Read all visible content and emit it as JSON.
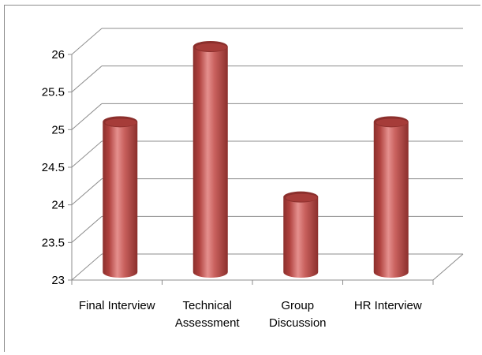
{
  "chart_data": {
    "type": "bar",
    "style": "3d-cylinder",
    "categories": [
      "Final Interview",
      "Technical Assessment",
      "Group Discussion",
      "HR Interview"
    ],
    "category_label_lines": [
      [
        "Final Interview"
      ],
      [
        "Technical",
        "Assessment"
      ],
      [
        "Group",
        "Discussion"
      ],
      [
        "HR Interview"
      ]
    ],
    "values": [
      25,
      26,
      24,
      25
    ],
    "ylim": [
      23,
      26
    ],
    "y_ticks": [
      "23",
      "23.5",
      "24",
      "24.5",
      "25",
      "25.5",
      "26"
    ],
    "title": "",
    "xlabel": "",
    "ylabel": "",
    "grid": true,
    "legend": "none",
    "bar_color": "#c0504d",
    "bar_highlight": "#e5908e",
    "bar_shadow": "#8b2f2c"
  }
}
